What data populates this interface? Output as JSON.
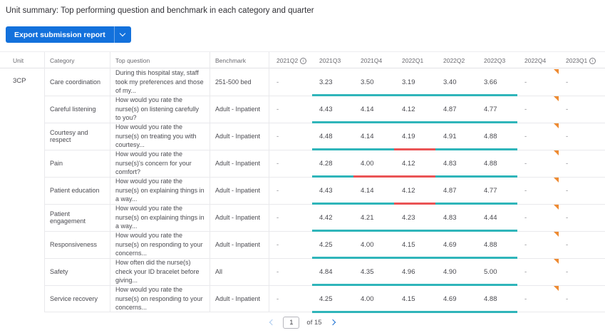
{
  "page": {
    "title": "Unit summary: Top performing question and benchmark in each category and quarter"
  },
  "toolbar": {
    "export_label": "Export submission report",
    "export_menu_icon": "chevron-down-icon"
  },
  "colors": {
    "accent_blue": "#1371dc",
    "teal": "#2fb5ba",
    "red": "#ea5455",
    "flag_orange": "#ee8a31"
  },
  "table": {
    "unit": "3CP",
    "columns": [
      {
        "label": "Unit"
      },
      {
        "label": "Category"
      },
      {
        "label": "Top question"
      },
      {
        "label": "Benchmark"
      },
      {
        "label": "2021Q2",
        "info": true
      },
      {
        "label": "2021Q3"
      },
      {
        "label": "2021Q4"
      },
      {
        "label": "2022Q1"
      },
      {
        "label": "2022Q2"
      },
      {
        "label": "2022Q3"
      },
      {
        "label": "2022Q4"
      },
      {
        "label": "2023Q1",
        "info": true
      }
    ],
    "rows": [
      {
        "category": "Care coordination",
        "question": "During this hospital stay, staff took my preferences and those of my...",
        "benchmark": "251-500 bed",
        "values": [
          "-",
          "3.23",
          "3.50",
          "3.19",
          "3.40",
          "3.66",
          "-",
          "-"
        ],
        "bar": [
          {
            "color": "teal",
            "pct": 100
          }
        ],
        "flag": true
      },
      {
        "category": "Careful listening",
        "question": "How would you rate the nurse(s) on listening carefully to you?",
        "benchmark": "Adult - Inpatient",
        "values": [
          "-",
          "4.43",
          "4.14",
          "4.12",
          "4.87",
          "4.77",
          "-",
          "-"
        ],
        "bar": [
          {
            "color": "teal",
            "pct": 100
          }
        ],
        "flag": true
      },
      {
        "category": "Courtesy and respect",
        "question": "How would you rate the nurse(s) on treating you with courtesy...",
        "benchmark": "Adult - Inpatient",
        "values": [
          "-",
          "4.48",
          "4.14",
          "4.19",
          "4.91",
          "4.88",
          "-",
          "-"
        ],
        "bar": [
          {
            "color": "teal",
            "pct": 40
          },
          {
            "color": "red",
            "pct": 20
          },
          {
            "color": "teal",
            "pct": 40
          }
        ],
        "flag": true
      },
      {
        "category": "Pain",
        "question": "How would you rate the nurse(s)'s concern for your comfort?",
        "benchmark": "Adult - Inpatient",
        "values": [
          "-",
          "4.28",
          "4.00",
          "4.12",
          "4.83",
          "4.88",
          "-",
          "-"
        ],
        "bar": [
          {
            "color": "teal",
            "pct": 20
          },
          {
            "color": "red",
            "pct": 40
          },
          {
            "color": "teal",
            "pct": 40
          }
        ],
        "flag": true
      },
      {
        "category": "Patient education",
        "question": "How would you rate the nurse(s) on explaining things in a way...",
        "benchmark": "Adult - Inpatient",
        "values": [
          "-",
          "4.43",
          "4.14",
          "4.12",
          "4.87",
          "4.77",
          "-",
          "-"
        ],
        "bar": [
          {
            "color": "teal",
            "pct": 40
          },
          {
            "color": "red",
            "pct": 20
          },
          {
            "color": "teal",
            "pct": 40
          }
        ],
        "flag": true
      },
      {
        "category": "Patient engagement",
        "question": "How would you rate the nurse(s) on explaining things in a way...",
        "benchmark": "Adult - Inpatient",
        "values": [
          "-",
          "4.42",
          "4.21",
          "4.23",
          "4.83",
          "4.44",
          "-",
          "-"
        ],
        "bar": [
          {
            "color": "teal",
            "pct": 100
          }
        ],
        "flag": true
      },
      {
        "category": "Responsiveness",
        "question": "How would you rate the nurse(s) on responding to your concerns...",
        "benchmark": "Adult - Inpatient",
        "values": [
          "-",
          "4.25",
          "4.00",
          "4.15",
          "4.69",
          "4.88",
          "-",
          "-"
        ],
        "bar": [
          {
            "color": "teal",
            "pct": 100
          }
        ],
        "flag": true
      },
      {
        "category": "Safety",
        "question": "How often did the nurse(s) check your ID bracelet before giving...",
        "benchmark": "All",
        "values": [
          "-",
          "4.84",
          "4.35",
          "4.96",
          "4.90",
          "5.00",
          "-",
          "-"
        ],
        "bar": [
          {
            "color": "teal",
            "pct": 100
          }
        ],
        "flag": true
      },
      {
        "category": "Service recovery",
        "question": "How would you rate the nurse(s) on responding to your concerns...",
        "benchmark": "Adult - Inpatient",
        "values": [
          "-",
          "4.25",
          "4.00",
          "4.15",
          "4.69",
          "4.88",
          "-",
          "-"
        ],
        "bar": [
          {
            "color": "teal",
            "pct": 100
          }
        ],
        "flag": true
      }
    ]
  },
  "pagination": {
    "page": "1",
    "of_label": "of 15"
  }
}
